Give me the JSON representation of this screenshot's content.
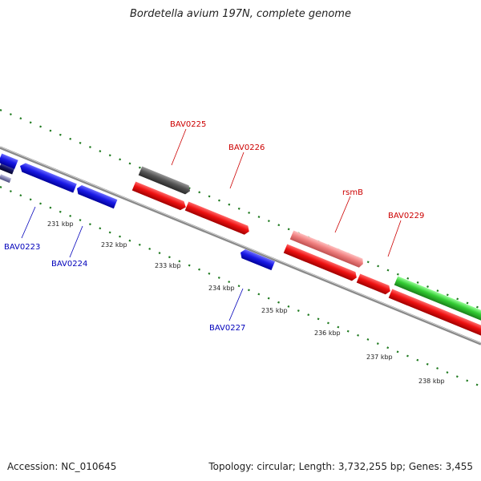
{
  "title": "Bordetella avium 197N, complete genome",
  "footer": {
    "accession": "Accession: NC_010645",
    "summary": "Topology: circular; Length: 3,732,255 bp; Genes: 3,455"
  },
  "colors": {
    "backbone": "#8a8a8a",
    "tick_dots": "#1f7a1f",
    "fwd_label": "#cc0000",
    "rev_label": "#0000bb",
    "gene_red": "#ee1111",
    "gene_blue": "#1a1ae6",
    "gene_gray": "#555555",
    "gene_pink": "#f08080",
    "gene_green": "#33cc33",
    "gene_navy": "#141466"
  },
  "ticks": [
    "231 kbp",
    "232 kbp",
    "233 kbp",
    "234 kbp",
    "235 kbp",
    "236 kbp",
    "237 kbp",
    "238 kbp"
  ],
  "gene_labels": {
    "fwd": [
      "BAV0225",
      "BAV0226",
      "rsmB",
      "BAV0229"
    ],
    "rev": [
      "BAV0223",
      "BAV0224",
      "BAV0227"
    ]
  }
}
